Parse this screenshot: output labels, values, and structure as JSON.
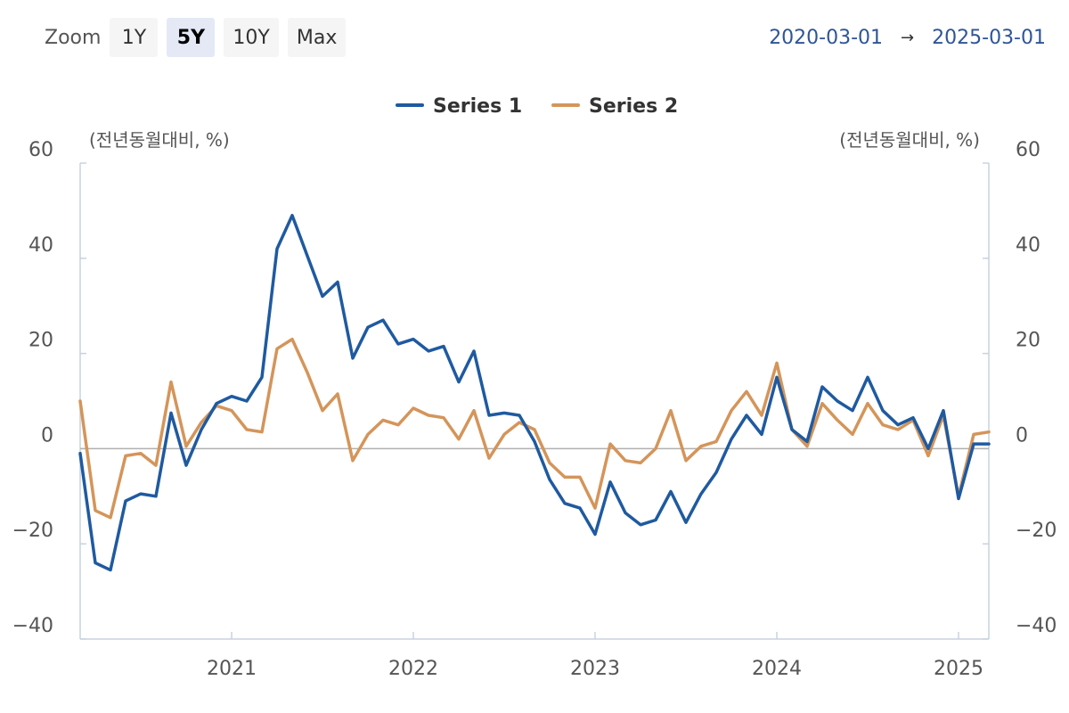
{
  "zoom": {
    "label": "Zoom",
    "buttons": [
      "1Y",
      "5Y",
      "10Y",
      "Max"
    ],
    "active": "5Y"
  },
  "range": {
    "from": "2020-03-01",
    "arrow": "→",
    "to": "2025-03-01"
  },
  "colors": {
    "series1": "#1f5aa0",
    "series2": "#d4955a",
    "range_text": "#2f5597"
  },
  "chart_data": {
    "type": "line",
    "title": "",
    "left_axis_label": "(전년동월대비, %)",
    "right_axis_label": "(전년동월대비, %)",
    "ylim": [
      -40,
      60
    ],
    "yticks": [
      -40,
      -20,
      0,
      20,
      40,
      60
    ],
    "ytick_labels": [
      "−40",
      "−20",
      "0",
      "20",
      "40",
      "60"
    ],
    "x_start": "2020-03",
    "x_end": "2025-03",
    "xticks": [
      "2021",
      "2022",
      "2023",
      "2024",
      "2025"
    ],
    "grid": false,
    "legend_position": "top-center",
    "series": [
      {
        "name": "Series 1",
        "values": [
          -1,
          -24,
          -25.5,
          -11,
          -9.5,
          -10,
          7.5,
          -3.5,
          4,
          9.5,
          11,
          10,
          15,
          42,
          49,
          40.5,
          32,
          35,
          19,
          25.5,
          27,
          22,
          23,
          20.5,
          21.5,
          14,
          20.5,
          7,
          7.5,
          7,
          1.5,
          -6.5,
          -11.5,
          -12.5,
          -18,
          -7,
          -13.5,
          -16,
          -15,
          -9,
          -15.5,
          -9.5,
          -5,
          2,
          7,
          3,
          15,
          4,
          1.5,
          13,
          10,
          8,
          15,
          8,
          5,
          6.5,
          0,
          8,
          -10.5,
          1,
          1
        ]
      },
      {
        "name": "Series 2",
        "values": [
          10,
          -13,
          -14.5,
          -1.5,
          -1,
          -3.5,
          14,
          0.5,
          5.5,
          9,
          8,
          4,
          3.5,
          21,
          23,
          16,
          8,
          11.5,
          -2.5,
          3,
          6,
          5,
          8.5,
          7,
          6.5,
          2,
          8,
          -2,
          3,
          5.5,
          4,
          -3,
          -6,
          -6,
          -12.5,
          1,
          -2.5,
          -3,
          0,
          8,
          -2.5,
          0.5,
          1.5,
          8,
          12,
          7,
          18,
          4,
          0.5,
          9.5,
          6,
          3,
          9.5,
          5,
          4,
          6,
          -1.5,
          7,
          -10,
          3,
          3.5
        ]
      }
    ]
  }
}
